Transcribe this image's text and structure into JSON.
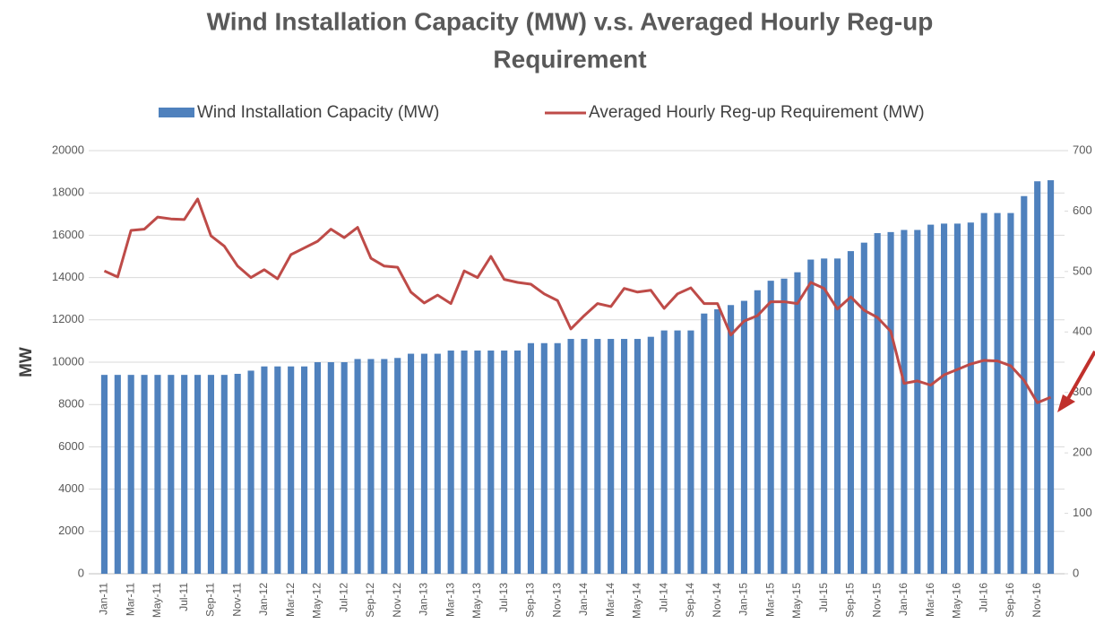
{
  "chart_data": {
    "type": "bar_line",
    "title": [
      "Wind Installation Capacity (MW) v.s. Averaged Hourly Reg-up",
      "Requirement"
    ],
    "ylabel": "MW",
    "categories": [
      "Jan-11",
      null,
      "Mar-11",
      null,
      "May-11",
      null,
      "Jul-11",
      null,
      "Sep-11",
      null,
      "Nov-11",
      null,
      "Jan-12",
      null,
      "Mar-12",
      null,
      "May-12",
      null,
      "Jul-12",
      null,
      "Sep-12",
      null,
      "Nov-12",
      null,
      "Jan-13",
      null,
      "Mar-13",
      null,
      "May-13",
      null,
      "Jul-13",
      null,
      "Sep-13",
      null,
      "Nov-13",
      null,
      "Jan-14",
      null,
      "Mar-14",
      null,
      "May-14",
      null,
      "Jul-14",
      null,
      "Sep-14",
      null,
      "Nov-14",
      null,
      "Jan-15",
      null,
      "Mar-15",
      null,
      "May-15",
      null,
      "Jul-15",
      null,
      "Sep-15",
      null,
      "Nov-15",
      null,
      "Jan-16",
      null,
      "Mar-16",
      null,
      "May-16",
      null,
      "Jul-16",
      null,
      "Sep-16",
      null,
      "Nov-16",
      null
    ],
    "series": [
      {
        "name": "Wind Installation Capacity (MW)",
        "type": "bar",
        "color": "#4f81bd",
        "values": [
          9400,
          9400,
          9400,
          9400,
          9400,
          9400,
          9400,
          9400,
          9400,
          9400,
          9450,
          9600,
          9800,
          9800,
          9800,
          9800,
          10000,
          10000,
          10000,
          10150,
          10150,
          10150,
          10200,
          10400,
          10400,
          10400,
          10550,
          10550,
          10550,
          10550,
          10550,
          10550,
          10900,
          10900,
          10900,
          11100,
          11100,
          11100,
          11100,
          11100,
          11100,
          11200,
          11500,
          11500,
          11500,
          12300,
          12500,
          12700,
          12900,
          13400,
          13850,
          13950,
          14250,
          14850,
          14900,
          14900,
          15250,
          15650,
          16100,
          16150,
          16250,
          16250,
          16500,
          16550,
          16550,
          16600,
          17050,
          17050,
          17050,
          17850,
          18550,
          18600
        ]
      },
      {
        "name": "Averaged Hourly Reg-up Requirement (MW)",
        "type": "line",
        "axis": "y2",
        "color": "#be4b48",
        "values": [
          501,
          491,
          568,
          570,
          590,
          587,
          586,
          620,
          559,
          542,
          509,
          490,
          503,
          488,
          528,
          539,
          550,
          570,
          556,
          573,
          522,
          509,
          507,
          466,
          448,
          461,
          447,
          501,
          490,
          525,
          487,
          482,
          479,
          463,
          452,
          405,
          427,
          447,
          442,
          472,
          466,
          469,
          439,
          463,
          473,
          447,
          447,
          395,
          418,
          427,
          450,
          450,
          447,
          482,
          472,
          438,
          458,
          436,
          424,
          401,
          315,
          319,
          312,
          329,
          338,
          347,
          353,
          352,
          344,
          320,
          283,
          292
        ]
      }
    ],
    "ylim": [
      0,
      20000
    ],
    "yticks": [
      0,
      2000,
      4000,
      6000,
      8000,
      10000,
      12000,
      14000,
      16000,
      18000,
      20000
    ],
    "y2lim": [
      0,
      700
    ],
    "y2ticks": [
      0,
      100,
      200,
      300,
      400,
      500,
      600,
      700
    ],
    "grid": true,
    "legend": "top"
  }
}
